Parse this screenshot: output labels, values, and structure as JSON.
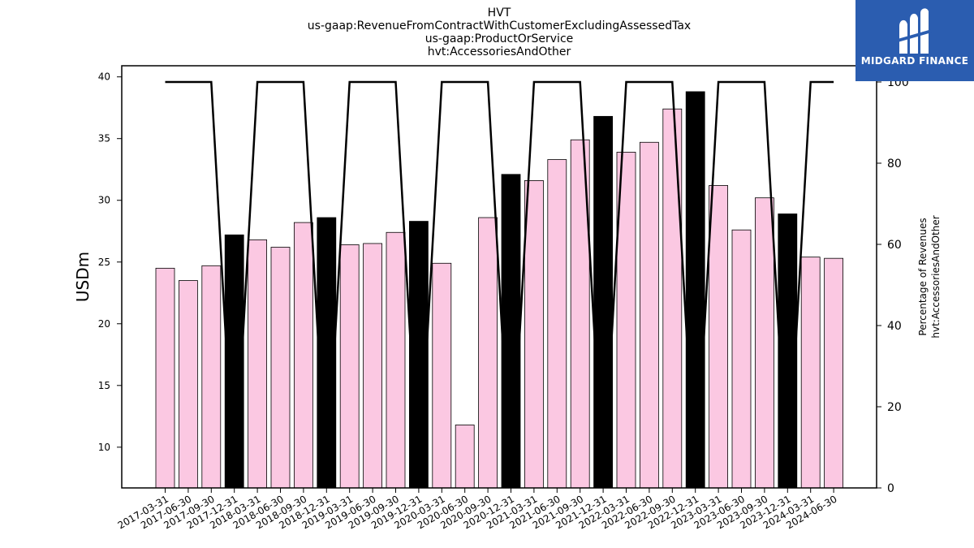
{
  "brand": {
    "name": "MIDGARD FINANCE",
    "logo_icon": "midgard-m-logo-icon",
    "color": "#2b5db0"
  },
  "chart_data": {
    "type": "bar",
    "title_lines": [
      "HVT",
      "us-gaap:RevenueFromContractWithCustomerExcludingAssessedTax",
      "us-gaap:ProductOrService",
      "hvt:AccessoriesAndOther"
    ],
    "ylabel": "USDm",
    "y2label_lines": [
      "Percentage of Revenues",
      "hvt:AccessoriesAndOther"
    ],
    "ylim": [
      6.7,
      40.9
    ],
    "y2lim": [
      0,
      104
    ],
    "yticks": [
      10,
      15,
      20,
      25,
      30,
      35,
      40
    ],
    "y2ticks": [
      0,
      20,
      40,
      60,
      80,
      100
    ],
    "categories": [
      "2017-03-31",
      "2017-06-30",
      "2017-09-30",
      "2017-12-31",
      "2018-03-31",
      "2018-06-30",
      "2018-09-30",
      "2018-12-31",
      "2019-03-31",
      "2019-06-30",
      "2019-09-30",
      "2019-12-31",
      "2020-03-31",
      "2020-06-30",
      "2020-09-30",
      "2020-12-31",
      "2021-03-31",
      "2021-06-30",
      "2021-09-30",
      "2021-12-31",
      "2022-03-31",
      "2022-06-30",
      "2022-09-30",
      "2022-12-31",
      "2023-03-31",
      "2023-06-30",
      "2023-09-30",
      "2023-12-31",
      "2024-03-31",
      "2024-06-30"
    ],
    "series": [
      {
        "type": "bar",
        "values": [
          24.5,
          23.5,
          24.7,
          27.2,
          26.8,
          26.2,
          28.2,
          28.6,
          26.4,
          26.5,
          27.4,
          28.3,
          24.9,
          11.8,
          28.6,
          32.1,
          31.6,
          33.3,
          34.9,
          36.8,
          33.9,
          34.7,
          37.4,
          38.8,
          31.2,
          27.6,
          30.2,
          28.9,
          25.4,
          25.3
        ],
        "highlight": [
          false,
          false,
          false,
          true,
          false,
          false,
          false,
          true,
          false,
          false,
          false,
          true,
          false,
          false,
          false,
          true,
          false,
          false,
          false,
          true,
          false,
          false,
          false,
          true,
          false,
          false,
          false,
          true,
          false,
          false
        ],
        "color": "#fbc8e2",
        "highlight_color": "#000000"
      },
      {
        "type": "line",
        "axis": "right",
        "values": [
          100,
          100,
          100,
          0,
          100,
          100,
          100,
          0,
          100,
          100,
          100,
          0,
          100,
          100,
          100,
          0,
          100,
          100,
          100,
          0,
          100,
          100,
          100,
          0,
          100,
          100,
          100,
          0,
          100,
          100
        ],
        "color": "#000000"
      }
    ]
  }
}
